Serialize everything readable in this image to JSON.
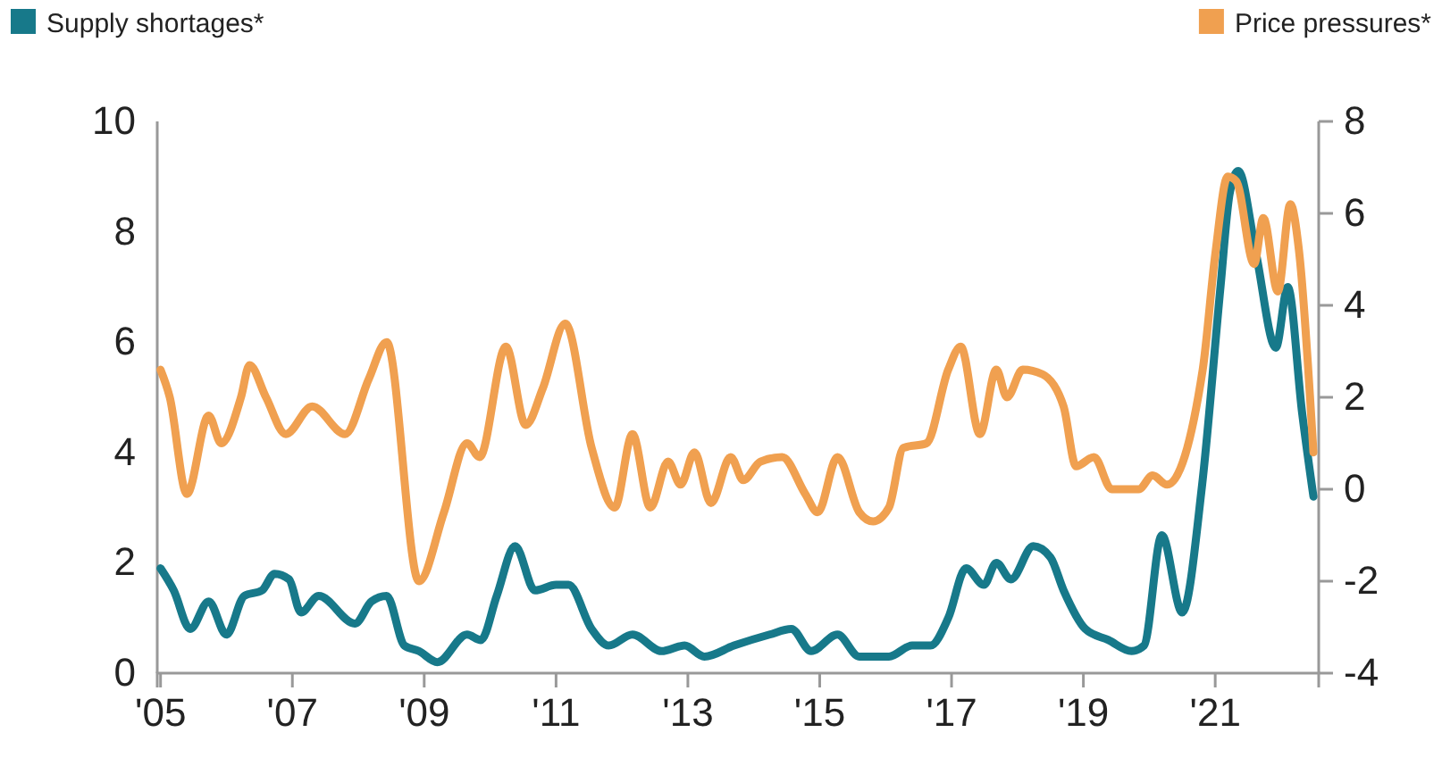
{
  "chart_data": {
    "type": "line",
    "legend": "top",
    "line_style": "solid",
    "xlim": [
      2004.95,
      2022.57
    ],
    "xticks": [
      {
        "value": 2005,
        "label": "'05"
      },
      {
        "value": 2007,
        "label": "'07"
      },
      {
        "value": 2009,
        "label": "'09"
      },
      {
        "value": 2011,
        "label": "'11"
      },
      {
        "value": 2013,
        "label": "'13"
      },
      {
        "value": 2015,
        "label": "'15"
      },
      {
        "value": 2017,
        "label": "'17"
      },
      {
        "value": 2019,
        "label": "'19"
      },
      {
        "value": 2021,
        "label": "'21"
      }
    ],
    "ylim": [
      0,
      10
    ],
    "yticks": [
      0,
      2,
      4,
      6,
      8,
      10
    ],
    "y2lim": [
      -4,
      8
    ],
    "y2ticks": [
      -4,
      -2,
      0,
      2,
      4,
      6,
      8
    ],
    "series": [
      {
        "name": "Supply shortages*",
        "color": "#17798a",
        "x": [
          2005.0,
          2005.2,
          2005.45,
          2005.73,
          2006.0,
          2006.27,
          2006.54,
          2006.73,
          2006.95,
          2007.13,
          2007.4,
          2007.95,
          2008.2,
          2008.43,
          2008.7,
          2008.92,
          2009.2,
          2009.65,
          2009.86,
          2010.1,
          2010.38,
          2010.68,
          2011.0,
          2011.19,
          2011.54,
          2011.8,
          2012.16,
          2012.6,
          2012.95,
          2013.25,
          2013.7,
          2014.24,
          2014.57,
          2014.87,
          2015.27,
          2015.6,
          2016.05,
          2016.4,
          2016.68,
          2016.95,
          2017.22,
          2017.49,
          2017.68,
          2017.9,
          2018.24,
          2018.5,
          2018.7,
          2019.03,
          2019.38,
          2019.73,
          2019.92,
          2020.19,
          2020.5,
          2020.8,
          2021.08,
          2021.22,
          2021.35,
          2021.62,
          2021.92,
          2022.1,
          2022.32,
          2022.49
        ],
        "values": [
          1.9,
          1.5,
          0.8,
          1.3,
          0.7,
          1.4,
          1.5,
          1.8,
          1.7,
          1.1,
          1.4,
          0.9,
          1.3,
          1.4,
          0.5,
          0.4,
          0.2,
          0.7,
          0.6,
          1.4,
          2.3,
          1.5,
          1.6,
          1.6,
          0.8,
          0.5,
          0.7,
          0.4,
          0.5,
          0.3,
          0.5,
          0.7,
          0.8,
          0.4,
          0.7,
          0.3,
          0.3,
          0.5,
          0.5,
          1.0,
          1.9,
          1.6,
          2.0,
          1.7,
          2.3,
          2.1,
          1.5,
          0.8,
          0.6,
          0.4,
          0.5,
          2.5,
          1.1,
          3.4,
          7.0,
          8.7,
          9.1,
          7.6,
          5.9,
          7.0,
          4.7,
          3.2
        ]
      },
      {
        "name": "Price pressures*",
        "color": "#f0a050",
        "axis": "y2",
        "x": [
          2005.0,
          2005.14,
          2005.4,
          2005.73,
          2005.92,
          2006.22,
          2006.35,
          2006.6,
          2006.9,
          2007.3,
          2007.8,
          2008.16,
          2008.43,
          2008.92,
          2009.3,
          2009.65,
          2009.84,
          2010.24,
          2010.54,
          2010.8,
          2011.14,
          2011.54,
          2011.89,
          2012.16,
          2012.43,
          2012.7,
          2012.89,
          2013.1,
          2013.35,
          2013.65,
          2013.84,
          2014.1,
          2014.43,
          2014.78,
          2014.97,
          2015.27,
          2015.6,
          2015.81,
          2016.05,
          2016.27,
          2016.62,
          2016.95,
          2017.14,
          2017.43,
          2017.68,
          2017.84,
          2018.08,
          2018.38,
          2018.7,
          2018.89,
          2019.16,
          2019.43,
          2019.84,
          2020.05,
          2020.27,
          2020.81,
          2021.0,
          2021.19,
          2021.32,
          2021.59,
          2021.73,
          2021.95,
          2022.14,
          2022.27,
          2022.49
        ],
        "values": [
          2.6,
          2.0,
          -0.1,
          1.6,
          1.0,
          2.0,
          2.7,
          2.0,
          1.2,
          1.8,
          1.2,
          2.4,
          3.2,
          -2.0,
          -0.5,
          1.0,
          0.7,
          3.1,
          1.4,
          2.2,
          3.6,
          0.9,
          -0.4,
          1.2,
          -0.4,
          0.6,
          0.1,
          0.8,
          -0.3,
          0.7,
          0.2,
          0.6,
          0.7,
          -0.1,
          -0.5,
          0.7,
          -0.5,
          -0.7,
          -0.4,
          0.9,
          1.0,
          2.6,
          3.1,
          1.2,
          2.6,
          2.0,
          2.6,
          2.5,
          1.8,
          0.5,
          0.7,
          0.0,
          0.0,
          0.3,
          0.1,
          2.6,
          5.1,
          6.8,
          6.7,
          4.9,
          5.9,
          4.3,
          6.2,
          5.2,
          0.8
        ]
      }
    ]
  }
}
